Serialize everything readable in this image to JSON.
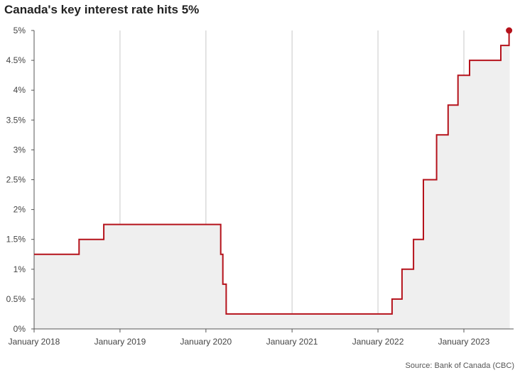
{
  "title": "Canada's key interest rate hits 5%",
  "source": "Source: Bank of Canada (CBC)",
  "colors": {
    "line": "#b5121b",
    "area": "#efefef",
    "grid": "#c8c8c8",
    "axis": "#555555"
  },
  "chart_data": {
    "type": "line",
    "title": "Canada's key interest rate hits 5%",
    "xlabel": "",
    "ylabel": "",
    "step": true,
    "area_fill": true,
    "grid": "vertical",
    "ylim": [
      0,
      5
    ],
    "xlim": [
      "2018-01-01",
      "2023-07-15"
    ],
    "y_ticks": [
      {
        "value": 0,
        "label": "0%"
      },
      {
        "value": 0.5,
        "label": "0.5%"
      },
      {
        "value": 1,
        "label": "1%"
      },
      {
        "value": 1.5,
        "label": "1.5%"
      },
      {
        "value": 2,
        "label": "2%"
      },
      {
        "value": 2.5,
        "label": "2.5%"
      },
      {
        "value": 3,
        "label": "3%"
      },
      {
        "value": 3.5,
        "label": "3.5%"
      },
      {
        "value": 4,
        "label": "4%"
      },
      {
        "value": 4.5,
        "label": "4.5%"
      },
      {
        "value": 5,
        "label": "5%"
      }
    ],
    "x_ticks": [
      {
        "value": "2018-01-01",
        "label": "January 2018"
      },
      {
        "value": "2019-01-01",
        "label": "January 2019"
      },
      {
        "value": "2020-01-01",
        "label": "January 2020"
      },
      {
        "value": "2021-01-01",
        "label": "January 2021"
      },
      {
        "value": "2022-01-01",
        "label": "January 2022"
      },
      {
        "value": "2023-01-01",
        "label": "January 2023"
      }
    ],
    "series": [
      {
        "points": [
          {
            "date": "2018-01-01",
            "rate": 1.25
          },
          {
            "date": "2018-07-11",
            "rate": 1.5
          },
          {
            "date": "2018-10-24",
            "rate": 1.75
          },
          {
            "date": "2020-03-04",
            "rate": 1.25
          },
          {
            "date": "2020-03-13",
            "rate": 0.75
          },
          {
            "date": "2020-03-27",
            "rate": 0.25
          },
          {
            "date": "2022-03-02",
            "rate": 0.5
          },
          {
            "date": "2022-04-13",
            "rate": 1.0
          },
          {
            "date": "2022-06-01",
            "rate": 1.5
          },
          {
            "date": "2022-07-13",
            "rate": 2.5
          },
          {
            "date": "2022-09-07",
            "rate": 3.25
          },
          {
            "date": "2022-10-26",
            "rate": 3.75
          },
          {
            "date": "2022-12-07",
            "rate": 4.25
          },
          {
            "date": "2023-01-25",
            "rate": 4.5
          },
          {
            "date": "2023-06-07",
            "rate": 4.75
          },
          {
            "date": "2023-07-12",
            "rate": 5.0
          }
        ],
        "end_marker": {
          "date": "2023-07-12",
          "rate": 5.0
        }
      }
    ]
  }
}
